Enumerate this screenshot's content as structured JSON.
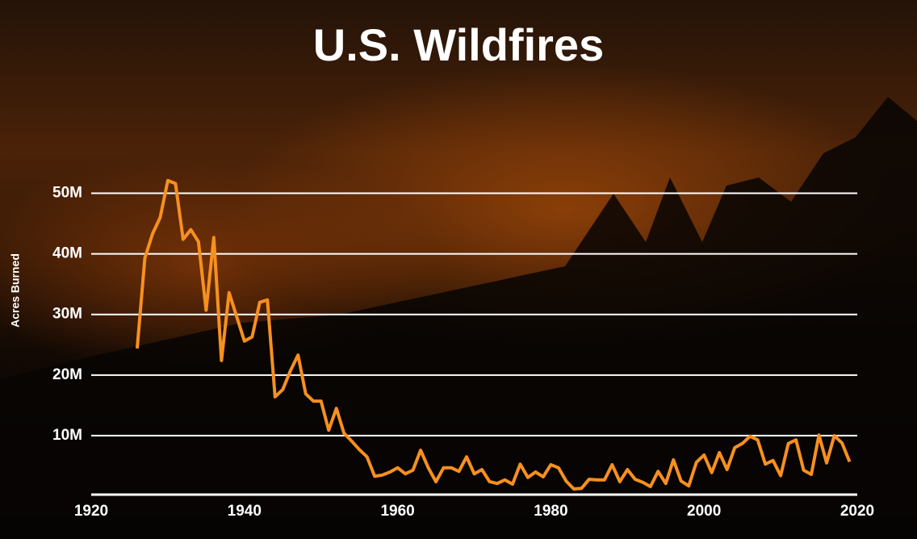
{
  "chart_data": {
    "type": "line",
    "title": "U.S. Wildfires",
    "y_label": "Acres Burned",
    "x": [
      1926,
      1927,
      1928,
      1929,
      1930,
      1931,
      1932,
      1933,
      1934,
      1935,
      1936,
      1937,
      1938,
      1939,
      1940,
      1941,
      1942,
      1943,
      1944,
      1945,
      1946,
      1947,
      1948,
      1949,
      1950,
      1951,
      1952,
      1953,
      1954,
      1955,
      1956,
      1957,
      1958,
      1959,
      1960,
      1961,
      1962,
      1963,
      1964,
      1965,
      1966,
      1967,
      1968,
      1969,
      1970,
      1971,
      1972,
      1973,
      1974,
      1975,
      1976,
      1977,
      1978,
      1979,
      1980,
      1981,
      1982,
      1983,
      1984,
      1985,
      1986,
      1987,
      1988,
      1989,
      1990,
      1991,
      1992,
      1993,
      1994,
      1995,
      1996,
      1997,
      1998,
      1999,
      2000,
      2001,
      2002,
      2003,
      2004,
      2005,
      2006,
      2007,
      2008,
      2009,
      2010,
      2011,
      2012,
      2013,
      2014,
      2015,
      2016,
      2017,
      2018,
      2019
    ],
    "series": [
      {
        "color": "#f7901e",
        "values": [
          24.4,
          39.3,
          43.3,
          46,
          52.1,
          51.6,
          42.4,
          44,
          42,
          30.7,
          42.7,
          22.4,
          33.6,
          29.6,
          25.6,
          26.3,
          32,
          32.4,
          16.4,
          17.6,
          20.7,
          23.3,
          16.9,
          15.7,
          15.7,
          10.9,
          14.5,
          10.4,
          9.1,
          7.7,
          6.5,
          3.3,
          3.5,
          4,
          4.7,
          3.7,
          4.3,
          7.6,
          4.7,
          2.4,
          4.7,
          4.7,
          4.1,
          6.5,
          3.7,
          4.4,
          2.4,
          2.1,
          2.7,
          2,
          5.3,
          3.1,
          4,
          3.2,
          5.2,
          4.7,
          2.5,
          1.2,
          1.3,
          2.8,
          2.7,
          2.7,
          5.2,
          2.4,
          4.4,
          2.8,
          2.3,
          1.6,
          4.1,
          2.1,
          6,
          2.5,
          1.7,
          5.6,
          6.8,
          3.9,
          7.2,
          4.4,
          8,
          8.7,
          9.9,
          9.3,
          5.3,
          5.9,
          3.4,
          8.7,
          9.3,
          4.3,
          3.6,
          10.1,
          5.5,
          10,
          8.8,
          5.7
        ]
      }
    ],
    "xlim": [
      1920,
      2020
    ],
    "xticks": [
      1920,
      1940,
      1960,
      1980,
      2000,
      2020
    ],
    "ylim": [
      0,
      55
    ],
    "yticks": [
      {
        "value": 10,
        "label": "10M"
      },
      {
        "value": 20,
        "label": "20M"
      },
      {
        "value": 30,
        "label": "30M"
      },
      {
        "value": 40,
        "label": "40M"
      },
      {
        "value": 50,
        "label": "50M"
      }
    ],
    "grid": true
  }
}
